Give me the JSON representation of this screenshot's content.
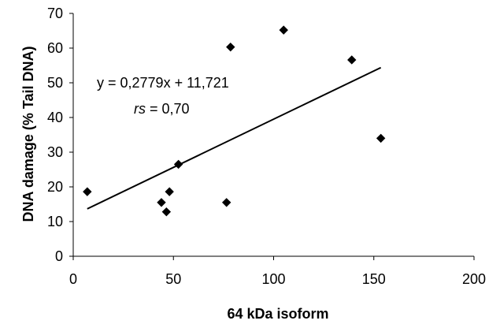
{
  "chart_data": {
    "type": "scatter",
    "title": "",
    "xlabel": "64 kDa isoform",
    "ylabel": "DNA damage (% Tail DNA)",
    "xlim": [
      0,
      200
    ],
    "ylim": [
      0,
      70
    ],
    "x_ticks": [
      0,
      50,
      100,
      150,
      200
    ],
    "y_ticks": [
      0,
      10,
      20,
      30,
      40,
      50,
      60,
      70
    ],
    "x_tick_labels": [
      "0",
      "50",
      "100",
      "150",
      "200"
    ],
    "y_tick_labels": [
      "0",
      "10",
      "20",
      "30",
      "40",
      "50",
      "60",
      "70"
    ],
    "grid": false,
    "legend": "none",
    "series": [
      {
        "marker": "diamond",
        "color": "#000000",
        "points": [
          {
            "x": 7,
            "y": 18.6
          },
          {
            "x": 44,
            "y": 15.5
          },
          {
            "x": 46.5,
            "y": 12.8
          },
          {
            "x": 48,
            "y": 18.6
          },
          {
            "x": 52.5,
            "y": 26.5
          },
          {
            "x": 76.5,
            "y": 15.5
          },
          {
            "x": 78.5,
            "y": 60.3
          },
          {
            "x": 105,
            "y": 65.2
          },
          {
            "x": 139,
            "y": 56.6
          },
          {
            "x": 153.5,
            "y": 34
          }
        ]
      }
    ],
    "trendline": {
      "slope": 0.2779,
      "intercept": 11.721,
      "x_start": 7,
      "x_end": 153.5,
      "color": "#000000"
    },
    "annotations": {
      "equation": "y = 0,2779x + 11,721",
      "rs_symbol": "rs",
      "rs_value": " = 0,70"
    }
  }
}
